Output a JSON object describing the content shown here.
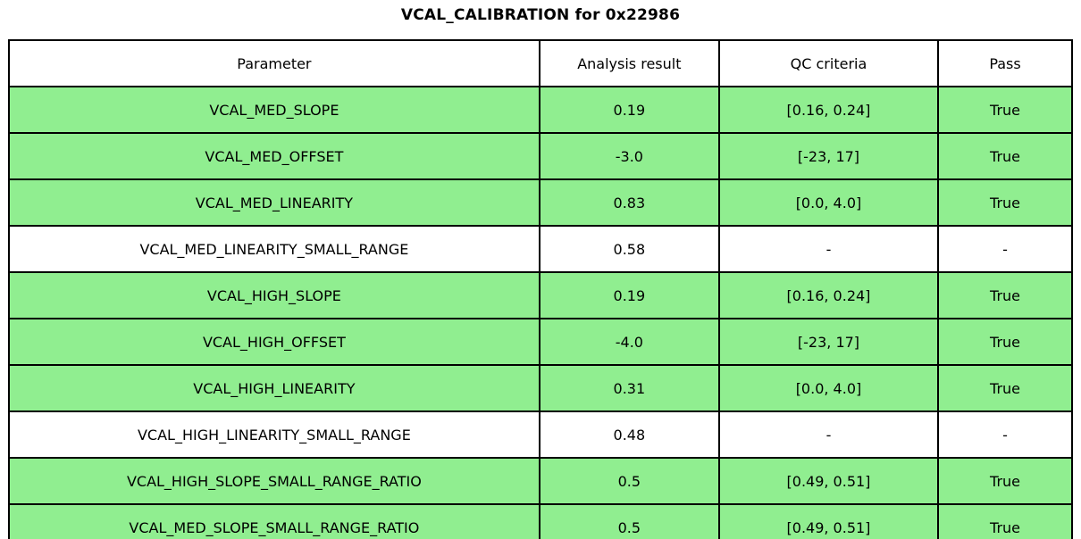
{
  "title": "VCAL_CALIBRATION for 0x22986",
  "colors": {
    "highlight_row_bg": "#90EE90",
    "neutral_row_bg": "#FFFFFF",
    "border": "#000000"
  },
  "chart_data": {
    "type": "table",
    "title": "VCAL_CALIBRATION for 0x22986",
    "columns": [
      "Parameter",
      "Analysis result",
      "QC criteria",
      "Pass"
    ],
    "rows": [
      [
        "VCAL_MED_SLOPE",
        "0.19",
        "[0.16, 0.24]",
        "True"
      ],
      [
        "VCAL_MED_OFFSET",
        "-3.0",
        "[-23, 17]",
        "True"
      ],
      [
        "VCAL_MED_LINEARITY",
        "0.83",
        "[0.0, 4.0]",
        "True"
      ],
      [
        "VCAL_MED_LINEARITY_SMALL_RANGE",
        "0.58",
        "-",
        "-"
      ],
      [
        "VCAL_HIGH_SLOPE",
        "0.19",
        "[0.16, 0.24]",
        "True"
      ],
      [
        "VCAL_HIGH_OFFSET",
        "-4.0",
        "[-23, 17]",
        "True"
      ],
      [
        "VCAL_HIGH_LINEARITY",
        "0.31",
        "[0.0, 4.0]",
        "True"
      ],
      [
        "VCAL_HIGH_LINEARITY_SMALL_RANGE",
        "0.48",
        "-",
        "-"
      ],
      [
        "VCAL_HIGH_SLOPE_SMALL_RANGE_RATIO",
        "0.5",
        "[0.49, 0.51]",
        "True"
      ],
      [
        "VCAL_MED_SLOPE_SMALL_RANGE_RATIO",
        "0.5",
        "[0.49, 0.51]",
        "True"
      ]
    ],
    "row_highlighted": [
      true,
      true,
      true,
      false,
      true,
      true,
      true,
      false,
      true,
      true
    ],
    "layout_hints": {
      "grid": "all-borders",
      "header_bg": "white",
      "pass_row_bg": "lightgreen",
      "text_align": "center"
    }
  }
}
